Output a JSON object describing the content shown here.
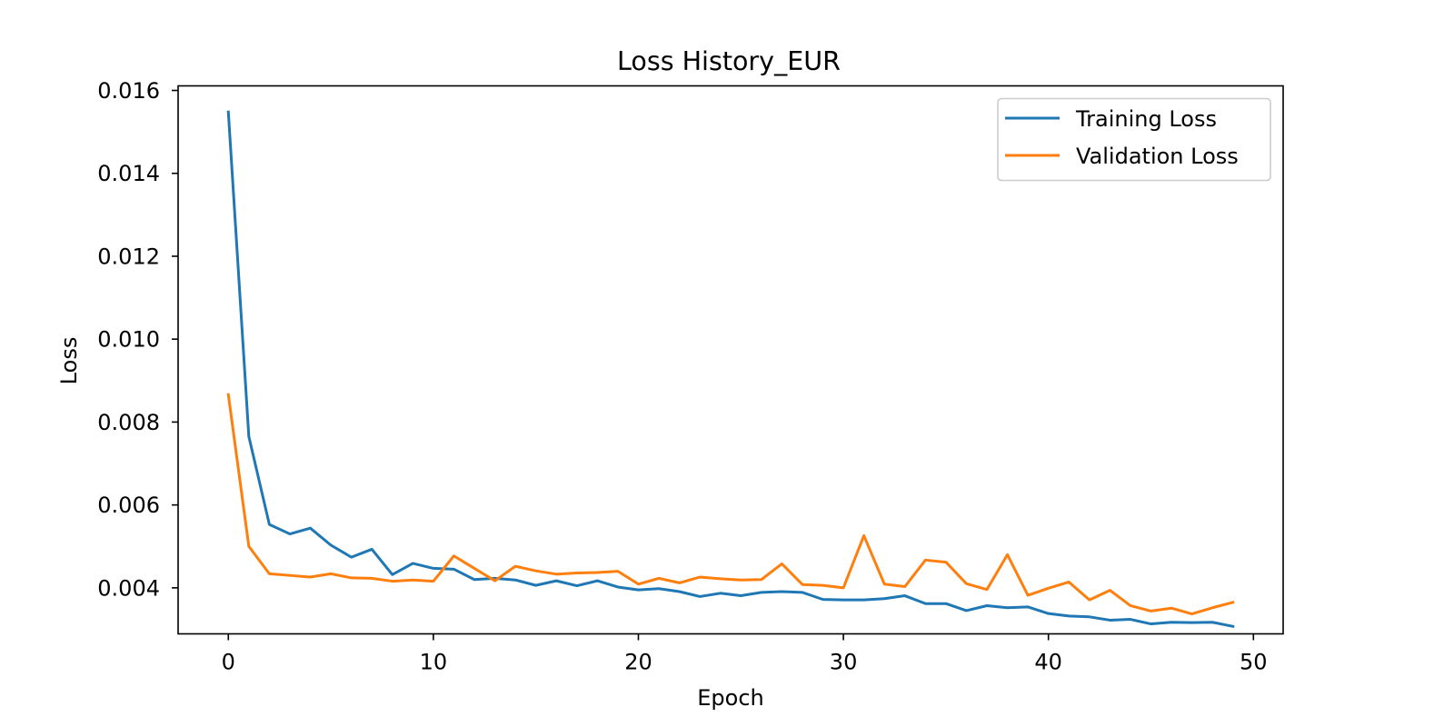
{
  "chart_data": {
    "type": "line",
    "title": "Loss History_EUR",
    "xlabel": "Epoch",
    "ylabel": "Loss",
    "xlim": [
      -2.45,
      51.45
    ],
    "ylim": [
      0.00289,
      0.01611
    ],
    "xticks": [
      0,
      10,
      20,
      30,
      40,
      50
    ],
    "xtick_labels": [
      "0",
      "10",
      "20",
      "30",
      "40",
      "50"
    ],
    "yticks": [
      0.004,
      0.006,
      0.008,
      0.01,
      0.012,
      0.014,
      0.016
    ],
    "ytick_labels": [
      "0.004",
      "0.006",
      "0.008",
      "0.010",
      "0.012",
      "0.014",
      "0.016"
    ],
    "grid": false,
    "legend": "top-right",
    "x": [
      0,
      1,
      2,
      3,
      4,
      5,
      6,
      7,
      8,
      9,
      10,
      11,
      12,
      13,
      14,
      15,
      16,
      17,
      18,
      19,
      20,
      21,
      22,
      23,
      24,
      25,
      26,
      27,
      28,
      29,
      30,
      31,
      32,
      33,
      34,
      35,
      36,
      37,
      38,
      39,
      40,
      41,
      42,
      43,
      44,
      45,
      46,
      47,
      48,
      49
    ],
    "series": [
      {
        "name": "Training Loss",
        "color": "#1f77b4",
        "values": [
          0.01548,
          0.00765,
          0.00553,
          0.0053,
          0.00544,
          0.00503,
          0.00474,
          0.00493,
          0.00432,
          0.00459,
          0.00447,
          0.00445,
          0.0042,
          0.00423,
          0.00419,
          0.00406,
          0.00417,
          0.00405,
          0.00417,
          0.00402,
          0.00395,
          0.00398,
          0.00391,
          0.00379,
          0.00387,
          0.00381,
          0.00389,
          0.00391,
          0.00389,
          0.00372,
          0.00371,
          0.00371,
          0.00374,
          0.00381,
          0.00362,
          0.00362,
          0.00345,
          0.00357,
          0.00352,
          0.00354,
          0.00338,
          0.00332,
          0.0033,
          0.00322,
          0.00324,
          0.00313,
          0.00317,
          0.00316,
          0.00317,
          0.00307
        ]
      },
      {
        "name": "Validation Loss",
        "color": "#ff7f0e",
        "values": [
          0.00866,
          0.005,
          0.00434,
          0.0043,
          0.00426,
          0.00434,
          0.00424,
          0.00423,
          0.00416,
          0.00419,
          0.00416,
          0.00477,
          0.00447,
          0.00417,
          0.00452,
          0.00441,
          0.00433,
          0.00436,
          0.00437,
          0.0044,
          0.00409,
          0.00423,
          0.00412,
          0.00426,
          0.00422,
          0.00419,
          0.0042,
          0.00458,
          0.00408,
          0.00406,
          0.004,
          0.00526,
          0.00409,
          0.00403,
          0.00467,
          0.00462,
          0.0041,
          0.00396,
          0.0048,
          0.00382,
          0.00399,
          0.00414,
          0.00371,
          0.00394,
          0.00357,
          0.00344,
          0.00351,
          0.00337,
          0.00352,
          0.00365
        ]
      }
    ]
  }
}
